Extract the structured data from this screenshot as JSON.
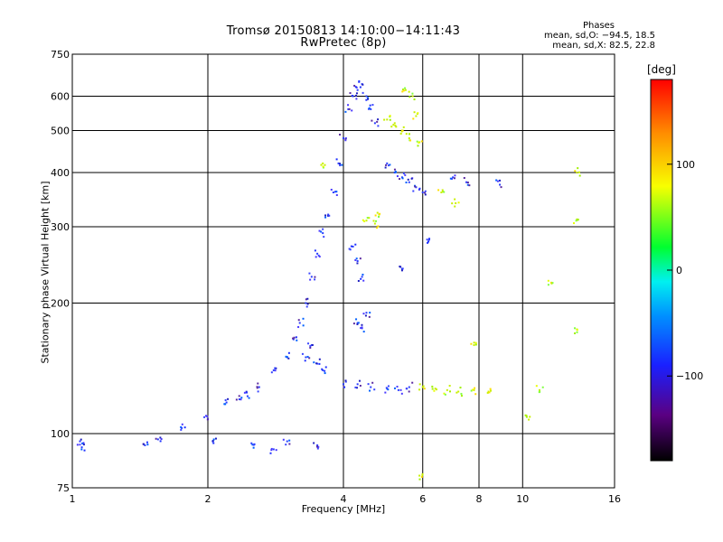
{
  "title": {
    "line1": "Tromsø 20150813 14:10:00−14:11:43",
    "line2": "RwPretec (8p)"
  },
  "phase_info": {
    "header": "Phases",
    "o_line": "mean, sd,O: −94.5, 18.5",
    "x_line": "mean, sd,X:  82.5, 22.8"
  },
  "colorbar": {
    "unit": "deg",
    "ticks": [
      "100",
      "0",
      "−100"
    ],
    "tick_values": [
      100,
      0,
      -100
    ],
    "range": [
      -180,
      180
    ]
  },
  "chart_data": {
    "type": "scatter",
    "title": "Tromsø 20150813 14:10:00−14:11:43",
    "subtitle": "RwPretec (8p)",
    "xlabel": "Frequency [MHz]",
    "ylabel": "Stationary phase Virtual Height [km]",
    "x_scale": "log",
    "y_scale": "log",
    "xlim": [
      1,
      16
    ],
    "ylim": [
      75,
      750
    ],
    "x_ticks": [
      1,
      2,
      4,
      6,
      8,
      10,
      16
    ],
    "x_tick_labels": [
      "1",
      "2",
      "4",
      "6",
      "8",
      "10",
      "16"
    ],
    "y_ticks": [
      75,
      100,
      200,
      300,
      400,
      500,
      600,
      750
    ],
    "y_tick_labels": [
      "75",
      "100",
      "200",
      "300",
      "400",
      "500",
      "600",
      "750"
    ],
    "grid": true,
    "colorbar_label": "[deg]",
    "series": [
      {
        "name": "O-mode",
        "phase_deg": -94.5,
        "color": "#2a3cff",
        "points": [
          [
            1.04,
            96
          ],
          [
            1.05,
            93
          ],
          [
            1.45,
            94
          ],
          [
            1.55,
            97
          ],
          [
            1.75,
            103
          ],
          [
            2.0,
            108
          ],
          [
            2.05,
            96
          ],
          [
            2.5,
            95
          ],
          [
            2.8,
            92
          ],
          [
            3.0,
            96
          ],
          [
            3.5,
            94
          ],
          [
            2.2,
            118
          ],
          [
            2.35,
            120
          ],
          [
            2.45,
            122
          ],
          [
            2.6,
            128
          ],
          [
            2.8,
            140
          ],
          [
            3.0,
            150
          ],
          [
            3.1,
            165
          ],
          [
            3.2,
            180
          ],
          [
            3.3,
            200
          ],
          [
            3.4,
            230
          ],
          [
            3.5,
            260
          ],
          [
            3.6,
            290
          ],
          [
            3.7,
            320
          ],
          [
            3.8,
            360
          ],
          [
            3.9,
            420
          ],
          [
            4.0,
            480
          ],
          [
            4.1,
            560
          ],
          [
            4.2,
            600
          ],
          [
            4.3,
            620
          ],
          [
            4.4,
            640
          ],
          [
            4.5,
            600
          ],
          [
            4.6,
            560
          ],
          [
            4.7,
            520
          ],
          [
            4.3,
            180
          ],
          [
            4.4,
            175
          ],
          [
            4.5,
            190
          ],
          [
            4.2,
            270
          ],
          [
            4.3,
            250
          ],
          [
            4.4,
            230
          ],
          [
            3.6,
            140
          ],
          [
            3.5,
            145
          ],
          [
            3.3,
            150
          ],
          [
            3.4,
            160
          ],
          [
            4.0,
            130
          ],
          [
            4.3,
            130
          ],
          [
            4.6,
            128
          ],
          [
            5.0,
            127
          ],
          [
            5.3,
            126
          ],
          [
            5.6,
            128
          ],
          [
            5.0,
            420
          ],
          [
            5.2,
            400
          ],
          [
            5.4,
            390
          ],
          [
            5.6,
            380
          ],
          [
            5.8,
            370
          ],
          [
            6.0,
            360
          ],
          [
            7.0,
            390
          ],
          [
            7.5,
            380
          ],
          [
            8.9,
            375
          ],
          [
            6.2,
            280
          ],
          [
            5.4,
            240
          ]
        ]
      },
      {
        "name": "X-mode",
        "phase_deg": 82.5,
        "color": "#c8f000",
        "points": [
          [
            5.0,
            530
          ],
          [
            5.2,
            520
          ],
          [
            5.4,
            500
          ],
          [
            5.6,
            480
          ],
          [
            5.7,
            600
          ],
          [
            5.8,
            540
          ],
          [
            5.9,
            470
          ],
          [
            5.5,
            620
          ],
          [
            4.5,
            310
          ],
          [
            4.7,
            305
          ],
          [
            4.8,
            320
          ],
          [
            6.0,
            128
          ],
          [
            6.4,
            127
          ],
          [
            6.8,
            126
          ],
          [
            7.2,
            125
          ],
          [
            7.8,
            126
          ],
          [
            8.4,
            125
          ],
          [
            10.2,
            110
          ],
          [
            10.9,
            126
          ],
          [
            11.6,
            222
          ],
          [
            13.2,
            400
          ],
          [
            13.2,
            312
          ],
          [
            13.2,
            174
          ],
          [
            7.8,
            160
          ],
          [
            5.9,
            80
          ],
          [
            6.6,
            360
          ],
          [
            7.1,
            340
          ],
          [
            3.6,
            420
          ]
        ]
      }
    ]
  }
}
